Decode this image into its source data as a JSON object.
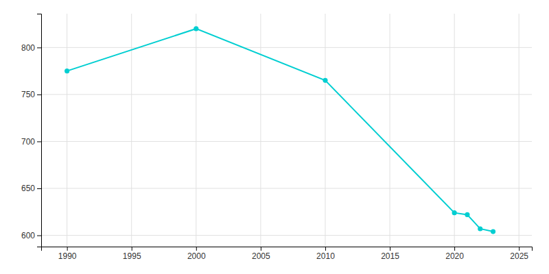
{
  "chart_data": {
    "type": "line",
    "x": [
      1990,
      2000,
      2010,
      2020,
      2021,
      2022,
      2023
    ],
    "values": [
      775,
      820,
      765,
      624,
      622,
      607,
      604
    ],
    "color": "#00CED1",
    "marker": "circle",
    "xlim": [
      1988,
      2026
    ],
    "ylim": [
      588,
      836
    ],
    "xticks": [
      1990,
      1995,
      2000,
      2005,
      2010,
      2015,
      2020,
      2025
    ],
    "yticks": [
      600,
      650,
      700,
      750,
      800
    ],
    "grid": true
  }
}
